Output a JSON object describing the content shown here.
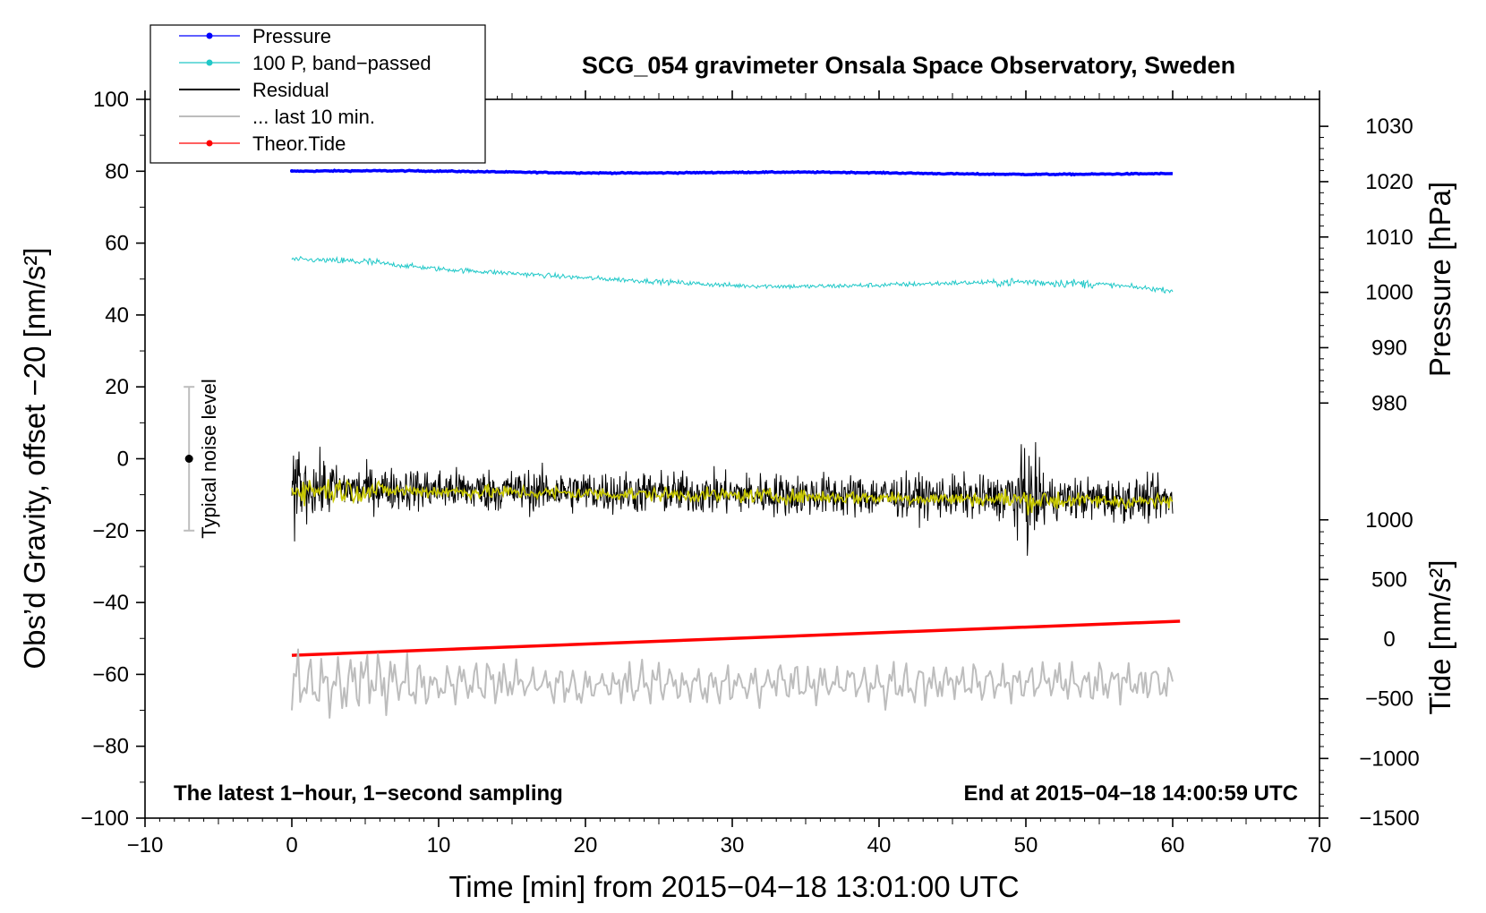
{
  "chart_data": {
    "type": "line",
    "title": "SCG_054 gravimeter Onsala Space Observatory, Sweden",
    "xlabel": "Time [min] from 2015−04−18 13:01:00 UTC",
    "ylabel_left": "Obs’d Gravity, offset −20 [nm/s²]",
    "ylabel_pressure": "Pressure [hPa]",
    "ylabel_tide": "Tide [nm/s²]",
    "xlim": [
      -10,
      70
    ],
    "ylim_left": [
      -100,
      100
    ],
    "x_ticks": [
      -10,
      0,
      10,
      20,
      30,
      40,
      50,
      60,
      70
    ],
    "x_tick_labels": [
      "−10",
      "0",
      "10",
      "20",
      "30",
      "40",
      "50",
      "60",
      "70"
    ],
    "y_left_ticks": [
      100,
      80,
      60,
      40,
      20,
      0,
      -20,
      -40,
      -60,
      -80,
      -100
    ],
    "y_left_tick_labels": [
      "100",
      "80",
      "60",
      "40",
      "20",
      "0",
      "−20",
      "−40",
      "−60",
      "−80",
      "−100"
    ],
    "pressure_axis": {
      "ticks": [
        1030,
        1020,
        1010,
        1000,
        990,
        980
      ],
      "tick_labels": [
        "1030",
        "1020",
        "1010",
        "1000",
        "990",
        "980"
      ],
      "left_value_at": [
        [
          1030,
          92.5
        ],
        [
          980,
          15.5
        ]
      ]
    },
    "tide_axis": {
      "ticks": [
        1000,
        500,
        0,
        -500,
        -1000,
        -1500
      ],
      "tick_labels": [
        "1000",
        "500",
        "0",
        "−500",
        "−1000",
        "−1500"
      ],
      "left_value_at": [
        [
          1000,
          -17
        ],
        [
          -1500,
          -100
        ]
      ]
    },
    "legend": [
      {
        "label": "Pressure",
        "color": "#0000ff",
        "marker": true
      },
      {
        "label": "100 P, band−passed",
        "color": "#20c8c8",
        "marker": true
      },
      {
        "label": "Residual",
        "color": "#000000",
        "marker": false
      },
      {
        "label": "... last 10 min.",
        "color": "#bdbdbd",
        "marker": false
      },
      {
        "label": "Theor.Tide",
        "color": "#ff0000",
        "marker": true
      }
    ],
    "series": [
      {
        "name": "Pressure",
        "color": "#0000ff",
        "x_range": [
          0,
          60
        ],
        "y_start": 80.0,
        "y_end": 79.2,
        "noise": 0.15
      },
      {
        "name": "100 P, band-passed",
        "color": "#20c8c8",
        "x_range": [
          0,
          60
        ],
        "x": [
          0,
          5,
          10,
          15,
          20,
          25,
          30,
          35,
          40,
          45,
          50,
          55,
          60
        ],
        "y": [
          55.5,
          54.8,
          52.8,
          51.6,
          50.3,
          49.3,
          48.2,
          47.9,
          48.3,
          48.9,
          49.2,
          48.6,
          46.8
        ],
        "noise": 0.7
      },
      {
        "name": "Residual",
        "color": "#000000",
        "x_range": [
          0,
          60
        ],
        "y_mean_start": -8,
        "y_mean_end": -11.5,
        "amplitude": 6,
        "spikes": [
          {
            "x": 0.2,
            "y": -23
          },
          {
            "x": 0.5,
            "y": 2
          },
          {
            "x": 49.9,
            "y": 3
          },
          {
            "x": 50.1,
            "y": -27
          }
        ]
      },
      {
        "name": "Residual smoothed",
        "color": "#c8c800",
        "x_range": [
          0,
          60
        ],
        "y_mean_start": -8.5,
        "y_mean_end": -12,
        "amplitude": 2
      },
      {
        "name": "... last 10 min.",
        "color": "#bdbdbd",
        "x_range": [
          0,
          60
        ],
        "y_mean": -62.5,
        "amplitude": 5,
        "y_start": -70,
        "y_end": -62
      },
      {
        "name": "Theor.Tide",
        "color": "#ff0000",
        "x_range": [
          0,
          60.5
        ],
        "y_start": -54.7,
        "y_end": -45.2
      }
    ],
    "noise_bar": {
      "label": "Typical noise level",
      "x": -7,
      "center": 0,
      "range": [
        -20,
        20
      ]
    },
    "annotations": {
      "bottom_left": "The latest 1−hour, 1−second sampling",
      "bottom_right": "End at 2015−04−18 14:00:59 UTC"
    }
  }
}
